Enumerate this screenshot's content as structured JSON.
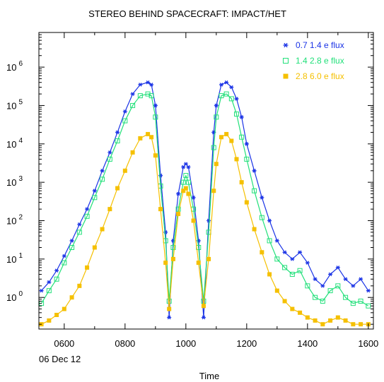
{
  "chart_data": {
    "type": "scatter",
    "title": "STEREO BEHIND SPACECRAFT: IMPACT/HET",
    "xlabel": "Time",
    "date_label": "06 Dec 12",
    "ylabel": "",
    "x_ticks": [
      "0600",
      "0800",
      "1000",
      "1200",
      "1400",
      "1600"
    ],
    "y_ticks": [
      {
        "base": "10",
        "exp": "0"
      },
      {
        "base": "10",
        "exp": "1"
      },
      {
        "base": "10",
        "exp": "2"
      },
      {
        "base": "10",
        "exp": "3"
      },
      {
        "base": "10",
        "exp": "4"
      },
      {
        "base": "10",
        "exp": "5"
      },
      {
        "base": "10",
        "exp": "6"
      }
    ],
    "y_scale": "log",
    "xlim": [
      "05:10",
      "16:10"
    ],
    "ylim": [
      0.15,
      8000000
    ],
    "legend_position": "top-right",
    "series": [
      {
        "name": "0.7 1.4 e flux",
        "color": "#1a33e6",
        "marker": "asterisk",
        "points": [
          [
            "05:15",
            1.5
          ],
          [
            "05:30",
            2.5
          ],
          [
            "05:45",
            5
          ],
          [
            "06:00",
            12
          ],
          [
            "06:15",
            30
          ],
          [
            "06:30",
            80
          ],
          [
            "06:45",
            200
          ],
          [
            "07:00",
            600
          ],
          [
            "07:15",
            2000
          ],
          [
            "07:30",
            6000
          ],
          [
            "07:45",
            20000
          ],
          [
            "08:00",
            70000
          ],
          [
            "08:15",
            200000
          ],
          [
            "08:30",
            350000
          ],
          [
            "08:45",
            400000
          ],
          [
            "08:52",
            350000
          ],
          [
            "09:00",
            100000
          ],
          [
            "09:10",
            1500
          ],
          [
            "09:20",
            50
          ],
          [
            "09:27",
            0.3
          ],
          [
            "09:35",
            30
          ],
          [
            "09:45",
            500
          ],
          [
            "09:55",
            2500
          ],
          [
            "10:00",
            3000
          ],
          [
            "10:05",
            2500
          ],
          [
            "10:15",
            400
          ],
          [
            "10:25",
            30
          ],
          [
            "10:35",
            0.3
          ],
          [
            "10:45",
            100
          ],
          [
            "10:55",
            20000
          ],
          [
            "11:00",
            100000
          ],
          [
            "11:10",
            350000
          ],
          [
            "11:20",
            400000
          ],
          [
            "11:30",
            300000
          ],
          [
            "11:40",
            150000
          ],
          [
            "11:50",
            50000
          ],
          [
            "12:00",
            10000
          ],
          [
            "12:15",
            2000
          ],
          [
            "12:30",
            400
          ],
          [
            "12:45",
            100
          ],
          [
            "13:00",
            30
          ],
          [
            "13:15",
            15
          ],
          [
            "13:30",
            10
          ],
          [
            "13:45",
            15
          ],
          [
            "14:00",
            8
          ],
          [
            "14:15",
            3
          ],
          [
            "14:30",
            2
          ],
          [
            "14:45",
            4
          ],
          [
            "15:00",
            6
          ],
          [
            "15:15",
            3
          ],
          [
            "15:30",
            2
          ],
          [
            "15:45",
            3
          ],
          [
            "16:00",
            1.5
          ]
        ]
      },
      {
        "name": "1.4 2.8 e flux",
        "color": "#22e07a",
        "marker": "square",
        "points": [
          [
            "05:15",
            0.7
          ],
          [
            "05:30",
            1.5
          ],
          [
            "05:45",
            3
          ],
          [
            "06:00",
            8
          ],
          [
            "06:15",
            20
          ],
          [
            "06:30",
            50
          ],
          [
            "06:45",
            130
          ],
          [
            "07:00",
            400
          ],
          [
            "07:15",
            1200
          ],
          [
            "07:30",
            4000
          ],
          [
            "07:45",
            12000
          ],
          [
            "08:00",
            40000
          ],
          [
            "08:15",
            100000
          ],
          [
            "08:30",
            180000
          ],
          [
            "08:45",
            200000
          ],
          [
            "08:52",
            180000
          ],
          [
            "09:00",
            50000
          ],
          [
            "09:10",
            800
          ],
          [
            "09:20",
            30
          ],
          [
            "09:27",
            0.8
          ],
          [
            "09:35",
            20
          ],
          [
            "09:45",
            200
          ],
          [
            "09:55",
            1000
          ],
          [
            "10:00",
            1500
          ],
          [
            "10:05",
            1000
          ],
          [
            "10:15",
            200
          ],
          [
            "10:25",
            20
          ],
          [
            "10:35",
            0.8
          ],
          [
            "10:45",
            50
          ],
          [
            "10:55",
            8000
          ],
          [
            "11:00",
            50000
          ],
          [
            "11:10",
            180000
          ],
          [
            "11:20",
            200000
          ],
          [
            "11:30",
            150000
          ],
          [
            "11:40",
            60000
          ],
          [
            "11:50",
            15000
          ],
          [
            "12:00",
            4000
          ],
          [
            "12:15",
            600
          ],
          [
            "12:30",
            120
          ],
          [
            "12:45",
            30
          ],
          [
            "13:00",
            10
          ],
          [
            "13:15",
            6
          ],
          [
            "13:30",
            4
          ],
          [
            "13:45",
            5
          ],
          [
            "14:00",
            2
          ],
          [
            "14:15",
            1
          ],
          [
            "14:30",
            0.8
          ],
          [
            "14:45",
            1.5
          ],
          [
            "15:00",
            2
          ],
          [
            "15:15",
            1
          ],
          [
            "15:30",
            0.7
          ],
          [
            "15:45",
            0.8
          ],
          [
            "16:00",
            0.6
          ]
        ]
      },
      {
        "name": "2.8 6.0 e flux",
        "color": "#f5c000",
        "marker": "filled-square",
        "points": [
          [
            "05:15",
            0.2
          ],
          [
            "05:30",
            0.25
          ],
          [
            "05:45",
            0.35
          ],
          [
            "06:00",
            0.5
          ],
          [
            "06:15",
            1
          ],
          [
            "06:30",
            2
          ],
          [
            "06:45",
            6
          ],
          [
            "07:00",
            20
          ],
          [
            "07:15",
            60
          ],
          [
            "07:30",
            200
          ],
          [
            "07:45",
            700
          ],
          [
            "08:00",
            2000
          ],
          [
            "08:15",
            6000
          ],
          [
            "08:30",
            14000
          ],
          [
            "08:45",
            18000
          ],
          [
            "08:52",
            15000
          ],
          [
            "09:00",
            5000
          ],
          [
            "09:10",
            200
          ],
          [
            "09:20",
            8
          ],
          [
            "09:27",
            0.5
          ],
          [
            "09:35",
            10
          ],
          [
            "09:45",
            150
          ],
          [
            "09:55",
            600
          ],
          [
            "10:00",
            700
          ],
          [
            "10:05",
            500
          ],
          [
            "10:15",
            100
          ],
          [
            "10:25",
            8
          ],
          [
            "10:35",
            0.6
          ],
          [
            "10:45",
            10
          ],
          [
            "10:55",
            600
          ],
          [
            "11:00",
            3000
          ],
          [
            "11:10",
            15000
          ],
          [
            "11:20",
            18000
          ],
          [
            "11:30",
            12000
          ],
          [
            "11:40",
            4000
          ],
          [
            "11:50",
            1000
          ],
          [
            "12:00",
            300
          ],
          [
            "12:15",
            60
          ],
          [
            "12:30",
            15
          ],
          [
            "12:45",
            4
          ],
          [
            "13:00",
            1.5
          ],
          [
            "13:15",
            0.8
          ],
          [
            "13:30",
            0.5
          ],
          [
            "13:45",
            0.4
          ],
          [
            "14:00",
            0.3
          ],
          [
            "14:15",
            0.25
          ],
          [
            "14:30",
            0.2
          ],
          [
            "14:45",
            0.25
          ],
          [
            "15:00",
            0.3
          ],
          [
            "15:15",
            0.25
          ],
          [
            "15:30",
            0.2
          ],
          [
            "15:45",
            0.2
          ],
          [
            "16:00",
            0.2
          ]
        ]
      }
    ]
  }
}
